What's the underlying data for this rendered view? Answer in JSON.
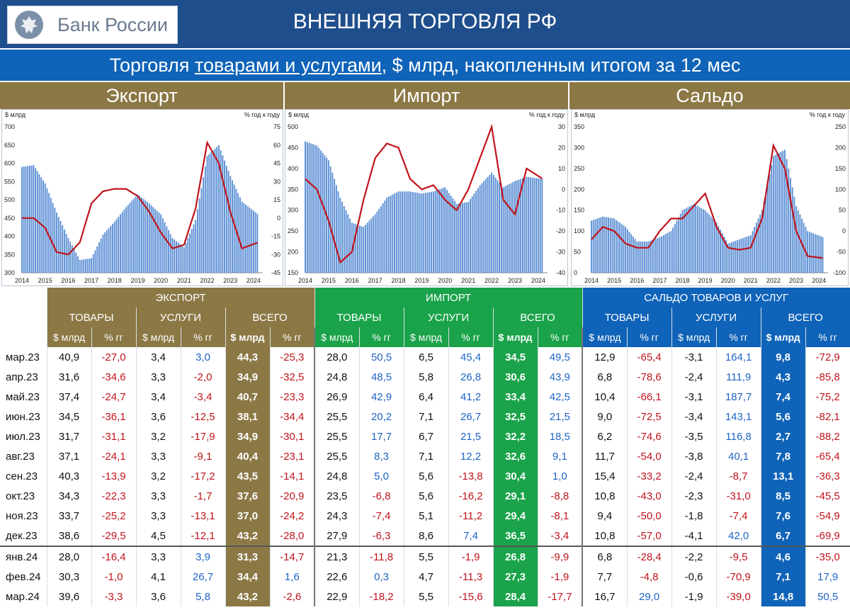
{
  "header": {
    "bank_name": "Банк России",
    "title": "ВНЕШНЯЯ ТОРГОВЛЯ РФ"
  },
  "subtitle": {
    "pre": "Торговля ",
    "link": "товарами и услугами",
    "post": ", $ млрд, накопленным итогом за 12 мес"
  },
  "sections": {
    "export": "Экспорт",
    "import": "Импорт",
    "saldo": "Сальдо"
  },
  "chart_data": [
    {
      "type": "bar",
      "title": "Экспорт",
      "ylabel_left": "$ млрд",
      "ylabel_right": "% год к году",
      "ylim_left": [
        300,
        700
      ],
      "yticks_left": [
        "700",
        "650",
        "600",
        "550",
        "500",
        "450",
        "400",
        "350",
        "300"
      ],
      "ylim_right": [
        -45,
        75
      ],
      "yticks_right": [
        "75",
        "60",
        "45",
        "30",
        "15",
        "0",
        "-15",
        "-30",
        "-45"
      ],
      "x_labels": [
        "2014",
        "2015",
        "2016",
        "2017",
        "2018",
        "2019",
        "2020",
        "2021",
        "2022",
        "2023",
        "2024"
      ],
      "series": [
        {
          "name": "",
          "kind": "bar",
          "color": "#5b8fd4",
          "x": [
            2014,
            2014.5,
            2015,
            2015.5,
            2016,
            2016.5,
            2017,
            2017.5,
            2018,
            2018.5,
            2019,
            2019.5,
            2020,
            2020.5,
            2021,
            2021.5,
            2022,
            2022.5,
            2023,
            2023.5,
            2024.2
          ],
          "values": [
            590,
            595,
            545,
            465,
            395,
            335,
            340,
            405,
            440,
            480,
            515,
            490,
            460,
            395,
            370,
            445,
            620,
            650,
            565,
            495,
            460
          ]
        },
        {
          "name": "",
          "kind": "line",
          "color": "#c0141c",
          "x": [
            2014,
            2014.5,
            2015,
            2015.5,
            2016,
            2016.5,
            2017,
            2017.5,
            2018,
            2018.5,
            2019,
            2019.5,
            2020,
            2020.5,
            2021,
            2021.5,
            2022,
            2022.5,
            2023,
            2023.5,
            2024.2
          ],
          "values": [
            0,
            0,
            -8,
            -28,
            -30,
            -20,
            12,
            22,
            24,
            24,
            18,
            5,
            -12,
            -25,
            -22,
            8,
            62,
            45,
            5,
            -25,
            -20
          ]
        }
      ]
    },
    {
      "type": "bar",
      "title": "Импорт",
      "ylabel_left": "$ млрд",
      "ylabel_right": "% год к году",
      "ylim_left": [
        150,
        500
      ],
      "yticks_left": [
        "500",
        "450",
        "400",
        "350",
        "300",
        "250",
        "200",
        "150"
      ],
      "ylim_right": [
        -40,
        30
      ],
      "yticks_right": [
        "30",
        "20",
        "10",
        "0",
        "-10",
        "-20",
        "-30",
        "-40"
      ],
      "x_labels": [
        "2014",
        "2015",
        "2016",
        "2017",
        "2018",
        "2019",
        "2020",
        "2021",
        "2022",
        "2023",
        "2024"
      ],
      "series": [
        {
          "name": "",
          "kind": "bar",
          "color": "#5b8fd4",
          "x": [
            2014,
            2014.5,
            2015,
            2015.5,
            2016,
            2016.5,
            2017,
            2017.5,
            2018,
            2018.5,
            2019,
            2019.5,
            2020,
            2020.5,
            2021,
            2021.5,
            2022,
            2022.5,
            2023,
            2023.5,
            2024.2
          ],
          "values": [
            465,
            455,
            420,
            330,
            270,
            260,
            290,
            330,
            345,
            345,
            340,
            345,
            355,
            315,
            320,
            360,
            390,
            355,
            370,
            380,
            375
          ]
        },
        {
          "name": "",
          "kind": "line",
          "color": "#c0141c",
          "x": [
            2014,
            2014.5,
            2015,
            2015.5,
            2016,
            2016.5,
            2017,
            2017.5,
            2018,
            2018.5,
            2019,
            2019.5,
            2020,
            2020.5,
            2021,
            2021.5,
            2022,
            2022.5,
            2023,
            2023.5,
            2024.2
          ],
          "values": [
            5,
            0,
            -15,
            -35,
            -30,
            -5,
            15,
            22,
            20,
            5,
            0,
            2,
            -5,
            -10,
            0,
            15,
            30,
            -5,
            -12,
            10,
            5
          ]
        }
      ]
    },
    {
      "type": "bar",
      "title": "Сальдо",
      "ylabel_left": "$ млрд",
      "ylabel_right": "% год к году",
      "ylim_left": [
        0,
        350
      ],
      "yticks_left": [
        "350",
        "300",
        "250",
        "200",
        "150",
        "100",
        "50",
        "0"
      ],
      "ylim_right": [
        -100,
        250
      ],
      "yticks_right": [
        "250",
        "200",
        "150",
        "100",
        "50",
        "0",
        "-50",
        "-100"
      ],
      "x_labels": [
        "2014",
        "2015",
        "2016",
        "2017",
        "2018",
        "2019",
        "2020",
        "2021",
        "2022",
        "2023",
        "2024"
      ],
      "series": [
        {
          "name": "",
          "kind": "bar",
          "color": "#5b8fd4",
          "x": [
            2014,
            2014.5,
            2015,
            2015.5,
            2016,
            2016.5,
            2017,
            2017.5,
            2018,
            2018.5,
            2019,
            2019.5,
            2020,
            2020.5,
            2021,
            2021.5,
            2022,
            2022.5,
            2023,
            2023.5,
            2024.2
          ],
          "values": [
            125,
            135,
            130,
            110,
            75,
            75,
            85,
            100,
            150,
            165,
            150,
            120,
            70,
            80,
            90,
            150,
            280,
            295,
            160,
            100,
            85
          ]
        },
        {
          "name": "",
          "kind": "line",
          "color": "#c0141c",
          "x": [
            2014,
            2014.5,
            2015,
            2015.5,
            2016,
            2016.5,
            2017,
            2017.5,
            2018,
            2018.5,
            2019,
            2019.5,
            2020,
            2020.5,
            2021,
            2021.5,
            2022,
            2022.5,
            2023,
            2023.5,
            2024.2
          ],
          "values": [
            -20,
            10,
            0,
            -30,
            -40,
            -40,
            0,
            30,
            30,
            60,
            90,
            10,
            -40,
            -45,
            -40,
            30,
            205,
            150,
            0,
            -60,
            -65
          ]
        }
      ]
    }
  ],
  "table": {
    "groups": {
      "export": "ЭКСПОРТ",
      "import": "ИМПОРТ",
      "saldo": "САЛЬДО ТОВАРОВ И УСЛУГ"
    },
    "subgroups": {
      "goods": "ТОВАРЫ",
      "services": "УСЛУГИ",
      "total": "ВСЕГО"
    },
    "units": {
      "usd": "$ млрд",
      "pct": "% гг"
    },
    "rows": [
      {
        "month": "мар.23",
        "cells": [
          "40,9",
          "-27,0",
          "3,4",
          "3,0",
          "44,3",
          "-25,3",
          "28,0",
          "50,5",
          "6,5",
          "45,4",
          "34,5",
          "49,5",
          "12,9",
          "-65,4",
          "-3,1",
          "164,1",
          "9,8",
          "-72,9"
        ]
      },
      {
        "month": "апр.23",
        "cells": [
          "31,6",
          "-34,6",
          "3,3",
          "-2,0",
          "34,9",
          "-32,5",
          "24,8",
          "48,5",
          "5,8",
          "26,8",
          "30,6",
          "43,9",
          "6,8",
          "-78,6",
          "-2,4",
          "111,9",
          "4,3",
          "-85,8"
        ]
      },
      {
        "month": "май.23",
        "cells": [
          "37,4",
          "-24,7",
          "3,4",
          "-3,4",
          "40,7",
          "-23,3",
          "26,9",
          "42,9",
          "6,4",
          "41,2",
          "33,4",
          "42,5",
          "10,4",
          "-66,1",
          "-3,1",
          "187,7",
          "7,4",
          "-75,2"
        ]
      },
      {
        "month": "июн.23",
        "cells": [
          "34,5",
          "-36,1",
          "3,6",
          "-12,5",
          "38,1",
          "-34,4",
          "25,5",
          "20,2",
          "7,1",
          "26,7",
          "32,5",
          "21,5",
          "9,0",
          "-72,5",
          "-3,4",
          "143,1",
          "5,6",
          "-82,1"
        ]
      },
      {
        "month": "июл.23",
        "cells": [
          "31,7",
          "-31,1",
          "3,2",
          "-17,9",
          "34,9",
          "-30,1",
          "25,5",
          "17,7",
          "6,7",
          "21,5",
          "32,2",
          "18,5",
          "6,2",
          "-74,6",
          "-3,5",
          "116,8",
          "2,7",
          "-88,2"
        ]
      },
      {
        "month": "авг.23",
        "cells": [
          "37,1",
          "-24,1",
          "3,3",
          "-9,1",
          "40,4",
          "-23,1",
          "25,5",
          "8,3",
          "7,1",
          "12,2",
          "32,6",
          "9,1",
          "11,7",
          "-54,0",
          "-3,8",
          "40,1",
          "7,8",
          "-65,4"
        ]
      },
      {
        "month": "сен.23",
        "cells": [
          "40,3",
          "-13,9",
          "3,2",
          "-17,2",
          "43,5",
          "-14,1",
          "24,8",
          "5,0",
          "5,6",
          "-13,8",
          "30,4",
          "1,0",
          "15,4",
          "-33,2",
          "-2,4",
          "-8,7",
          "13,1",
          "-36,3"
        ]
      },
      {
        "month": "окт.23",
        "cells": [
          "34,3",
          "-22,3",
          "3,3",
          "-1,7",
          "37,6",
          "-20,9",
          "23,5",
          "-6,8",
          "5,6",
          "-16,2",
          "29,1",
          "-8,8",
          "10,8",
          "-43,0",
          "-2,3",
          "-31,0",
          "8,5",
          "-45,5"
        ]
      },
      {
        "month": "ноя.23",
        "cells": [
          "33,7",
          "-25,2",
          "3,3",
          "-13,1",
          "37,0",
          "-24,2",
          "24,3",
          "-7,4",
          "5,1",
          "-11,2",
          "29,4",
          "-8,1",
          "9,4",
          "-50,0",
          "-1,8",
          "-7,4",
          "7,6",
          "-54,9"
        ]
      },
      {
        "month": "дек.23",
        "cells": [
          "38,6",
          "-29,5",
          "4,5",
          "-12,1",
          "43,2",
          "-28,0",
          "27,9",
          "-6,3",
          "8,6",
          "7,4",
          "36,5",
          "-3,4",
          "10,8",
          "-57,0",
          "-4,1",
          "42,0",
          "6,7",
          "-69,9"
        ]
      },
      {
        "month": "янв.24",
        "cells": [
          "28,0",
          "-16,4",
          "3,3",
          "3,9",
          "31,3",
          "-14,7",
          "21,3",
          "-11,8",
          "5,5",
          "-1,9",
          "26,8",
          "-9,9",
          "6,8",
          "-28,4",
          "-2,2",
          "-9,5",
          "4,6",
          "-35,0"
        ]
      },
      {
        "month": "фев.24",
        "cells": [
          "30,3",
          "-1,0",
          "4,1",
          "26,7",
          "34,4",
          "1,6",
          "22,6",
          "0,3",
          "4,7",
          "-11,3",
          "27,3",
          "-1,9",
          "7,7",
          "-4,8",
          "-0,6",
          "-70,9",
          "7,1",
          "17,9"
        ]
      },
      {
        "month": "мар.24",
        "cells": [
          "39,6",
          "-3,3",
          "3,6",
          "5,8",
          "43,2",
          "-2,6",
          "22,9",
          "-18,2",
          "5,5",
          "-15,6",
          "28,4",
          "-17,7",
          "16,7",
          "29,0",
          "-1,9",
          "-39,0",
          "14,8",
          "50,5"
        ]
      }
    ]
  }
}
